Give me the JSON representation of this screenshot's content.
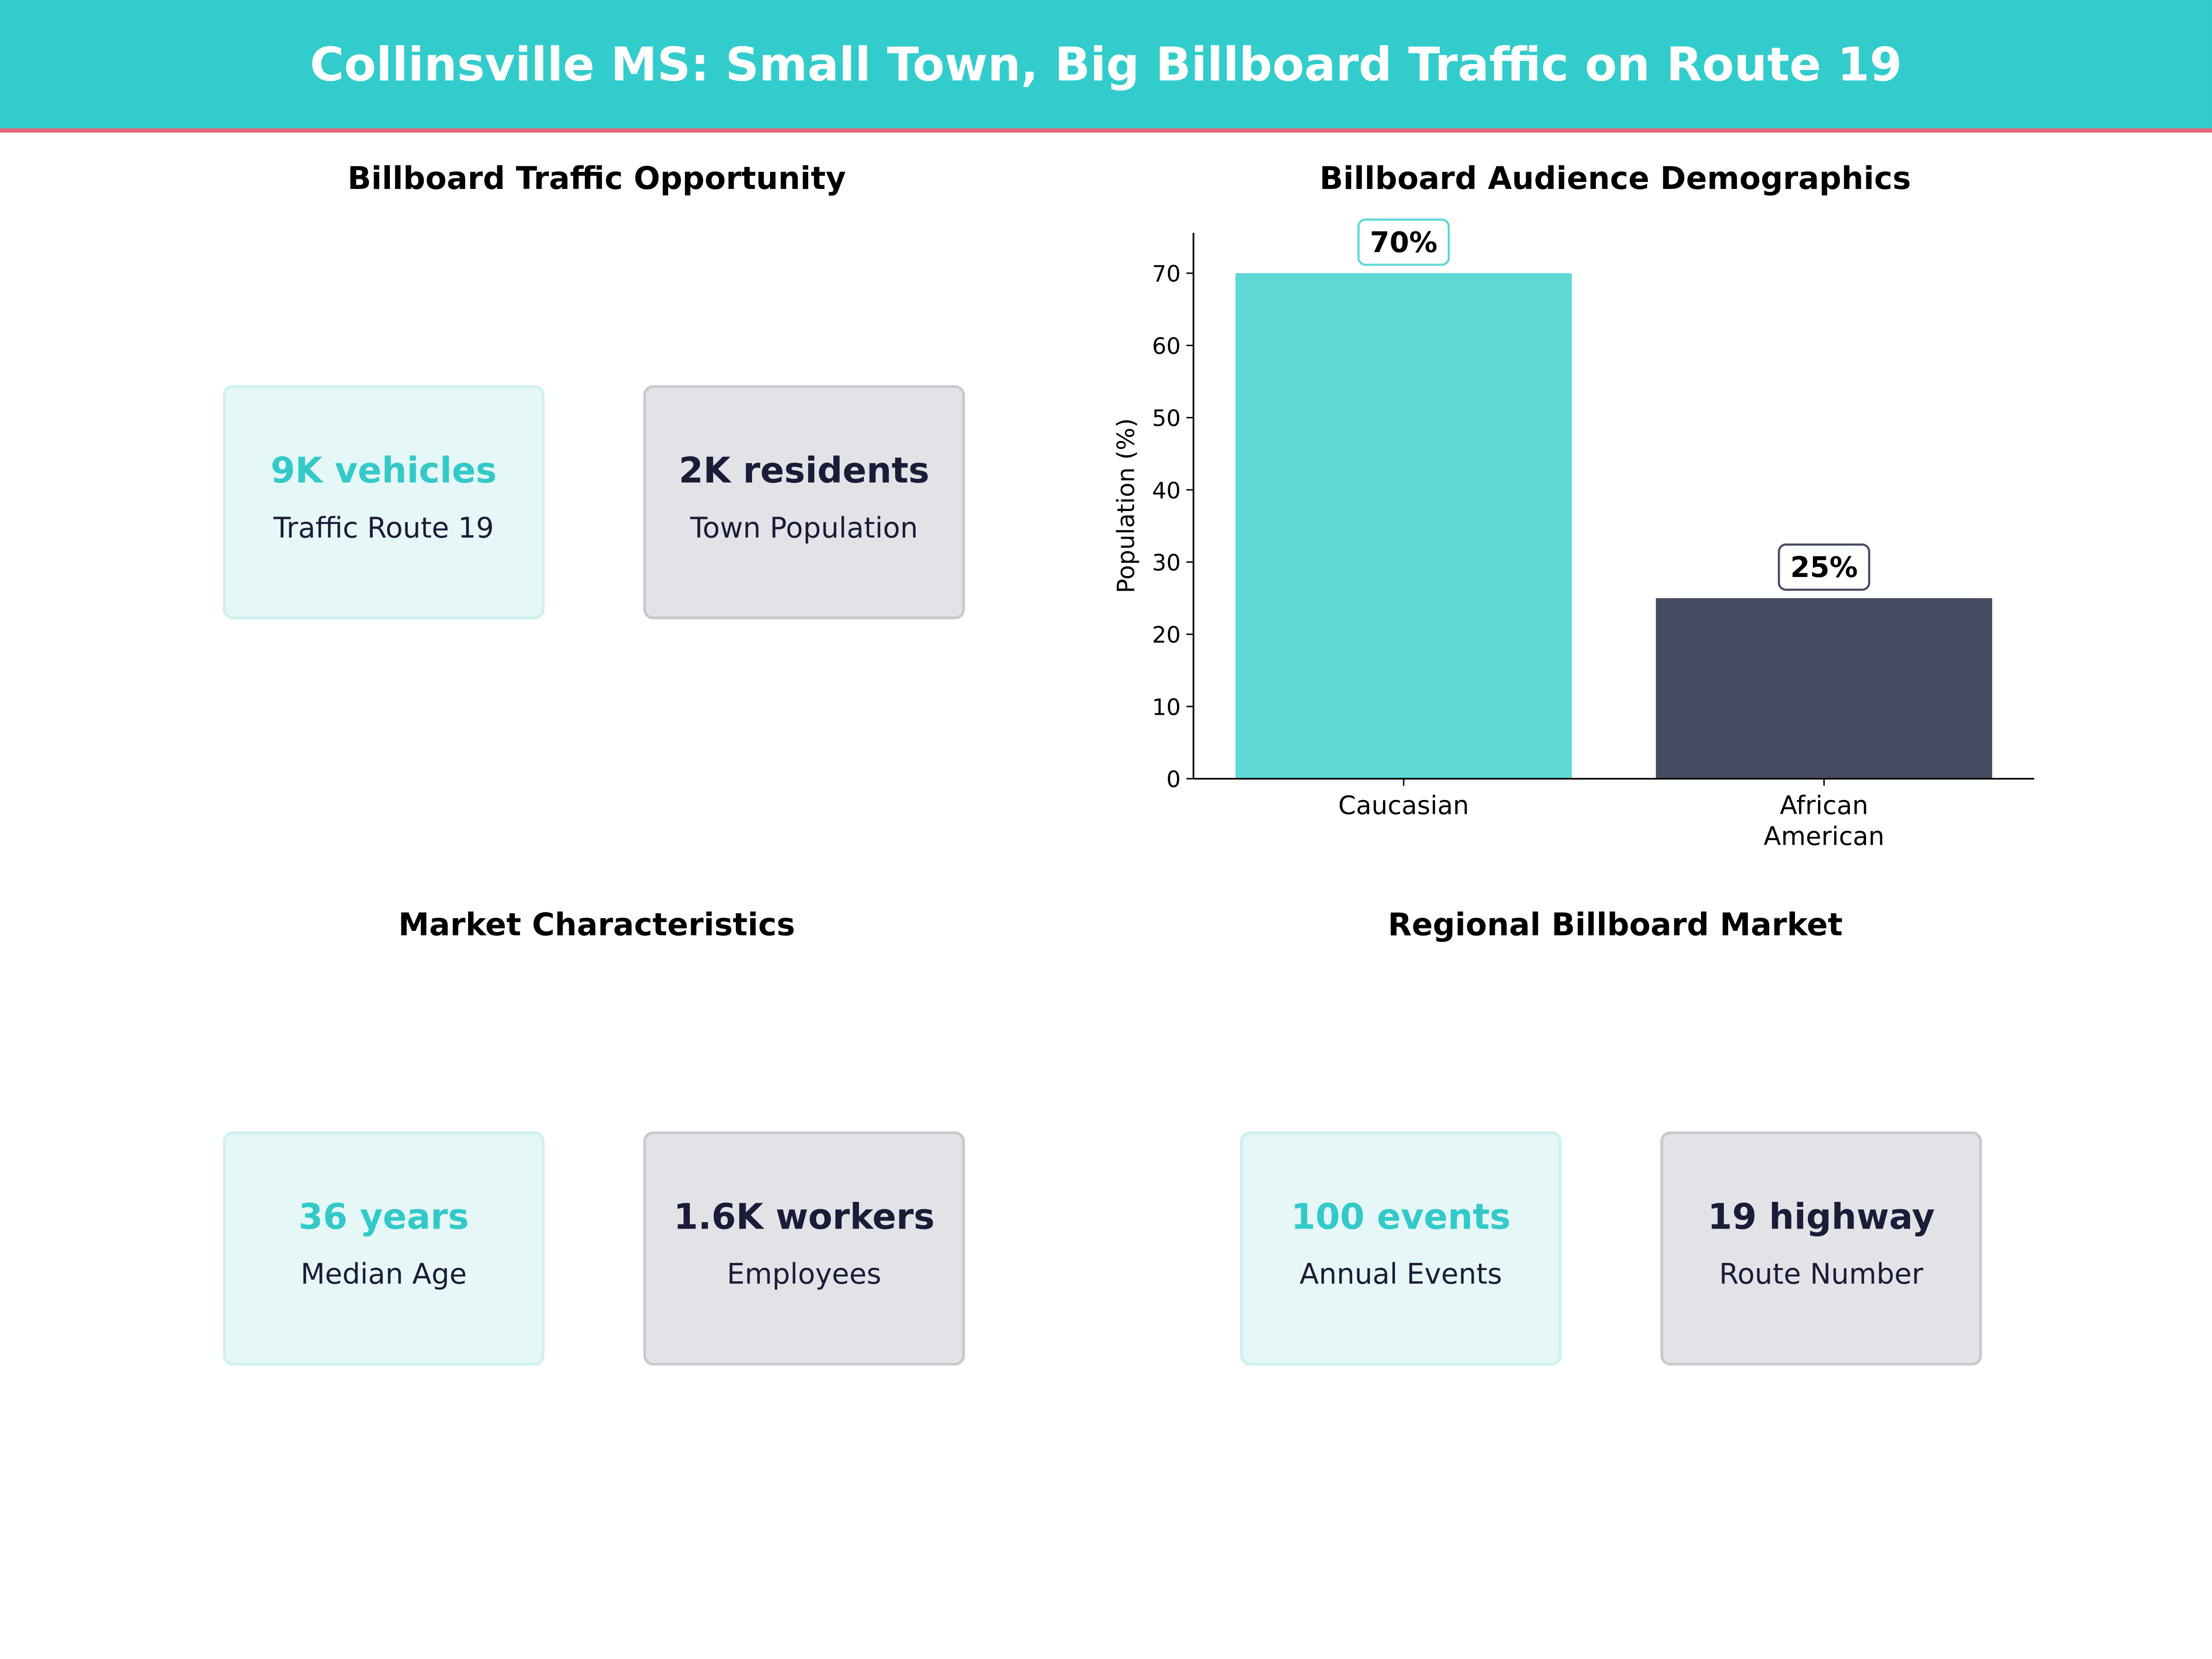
{
  "header": {
    "title": "Collinsville MS: Small Town, Big Billboard Traffic on Route 19"
  },
  "panels": {
    "traffic": {
      "title": "Billboard Traffic Opportunity",
      "cards": [
        {
          "value": "9K vehicles",
          "label": "Traffic Route 19",
          "style": "teal"
        },
        {
          "value": "2K residents",
          "label": "Town Population",
          "style": "gray"
        }
      ]
    },
    "market": {
      "title": "Market Characteristics",
      "cards": [
        {
          "value": "36 years",
          "label": "Median Age",
          "style": "teal"
        },
        {
          "value": "1.6K workers",
          "label": "Employees",
          "style": "gray"
        }
      ]
    },
    "regional": {
      "title": "Regional Billboard Market",
      "cards": [
        {
          "value": "100 events",
          "label": "Annual Events",
          "style": "teal"
        },
        {
          "value": "19 highway",
          "label": "Route Number",
          "style": "gray"
        }
      ]
    }
  },
  "colors": {
    "teal": "#33CCCC",
    "accent_line": "#E8637A",
    "bar_teal": "#5DD8D5",
    "bar_navy": "#464B62"
  },
  "chart_data": {
    "type": "bar",
    "title": "Billboard Audience Demographics",
    "categories": [
      "Caucasian",
      "African\nAmerican"
    ],
    "values": [
      70,
      25
    ],
    "data_labels": [
      "70%",
      "25%"
    ],
    "bar_colors": [
      "#5DD8D5",
      "#464B62"
    ],
    "xlabel": "",
    "ylabel": "Population (%)",
    "ylim": [
      0,
      75.6
    ],
    "yticks": [
      0,
      10,
      20,
      30,
      40,
      50,
      60,
      70
    ],
    "grid": false
  }
}
